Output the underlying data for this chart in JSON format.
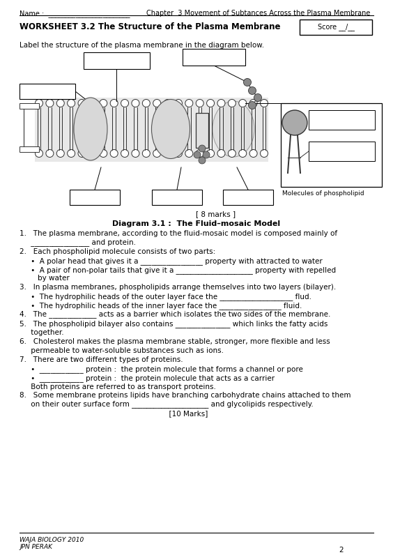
{
  "title_header": "Name :  ________________________",
  "chapter_header": "Chapter  3 Movement of Subtances Across the Plasma Membrane",
  "worksheet_title": "WORKSHEET 3.2 The Structure of the Plasma Membrane",
  "score_label": "Score __/__",
  "label_instruction": "Label the structure of the plasma membrane in the diagram below.",
  "diagram_title": "Diagram 3.1 :  The Fluid–mosaic Model",
  "marks_label": "[ 8 marks ]",
  "footer_left1": "WAJA BIOLOGY 2010",
  "footer_left2": "JPN PERAK",
  "page_num": "2",
  "questions": [
    "1.   The plasma membrane, according to the fluid-mosaic model is composed mainly of\n     ________________ and protein.",
    "2.   Each phospholipid molecule consists of two parts:",
    "     •  A polar head that gives it a _________________ property with attracted to water",
    "     •  A pair of non-polar tails that give it a _____________________ property with repelled\n        by water",
    "3.   In plasma membranes, phospholipids arrange themselves into two layers (bilayer).",
    "     •  The hydrophilic heads of the outer layer face the ____________________ flud.",
    "     •  The hydrophilic heads of the inner layer face the _________________ fluid.",
    "4.   The _____________ acts as a barrier which isolates the two sides of the membrane.",
    "5.   The phospholipid bilayer also contains _______________ which links the fatty acids\n     together.",
    "6.   Cholesterol makes the plasma membrane stable, stronger, more flexible and less\n     permeable to water-soluble substances such as ions.",
    "7.   There are two different types of proteins.",
    "     •  ____________ protein :  the protein molecule that forms a channel or pore",
    "     •  ____________ protein :  the protein molecule that acts as a carrier\n     Both proteins are referred to as transport proteins.",
    "8.   Some membrane proteins lipids have branching carbohydrate chains attached to them\n     on their outer surface form _____________________ and glycolipids respectively.",
    "                                                                  [10 Marks]"
  ],
  "bg_color": "#ffffff",
  "text_color": "#000000",
  "font_size_header": 7.0,
  "font_size_title": 8.5,
  "font_size_body": 7.5,
  "font_size_diagram_title": 8.0
}
